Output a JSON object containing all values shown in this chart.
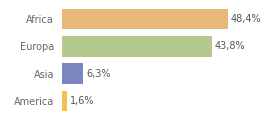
{
  "categories": [
    "America",
    "Asia",
    "Europa",
    "Africa"
  ],
  "values": [
    1.6,
    6.3,
    43.8,
    48.4
  ],
  "labels": [
    "1,6%",
    "6,3%",
    "43,8%",
    "48,4%"
  ],
  "bar_colors": [
    "#f2c14e",
    "#7b85c0",
    "#b5c98e",
    "#e8b87a"
  ],
  "background_color": "#ffffff",
  "xlim": [
    0,
    62
  ],
  "label_fontsize": 7,
  "tick_fontsize": 7,
  "bar_height": 0.75
}
